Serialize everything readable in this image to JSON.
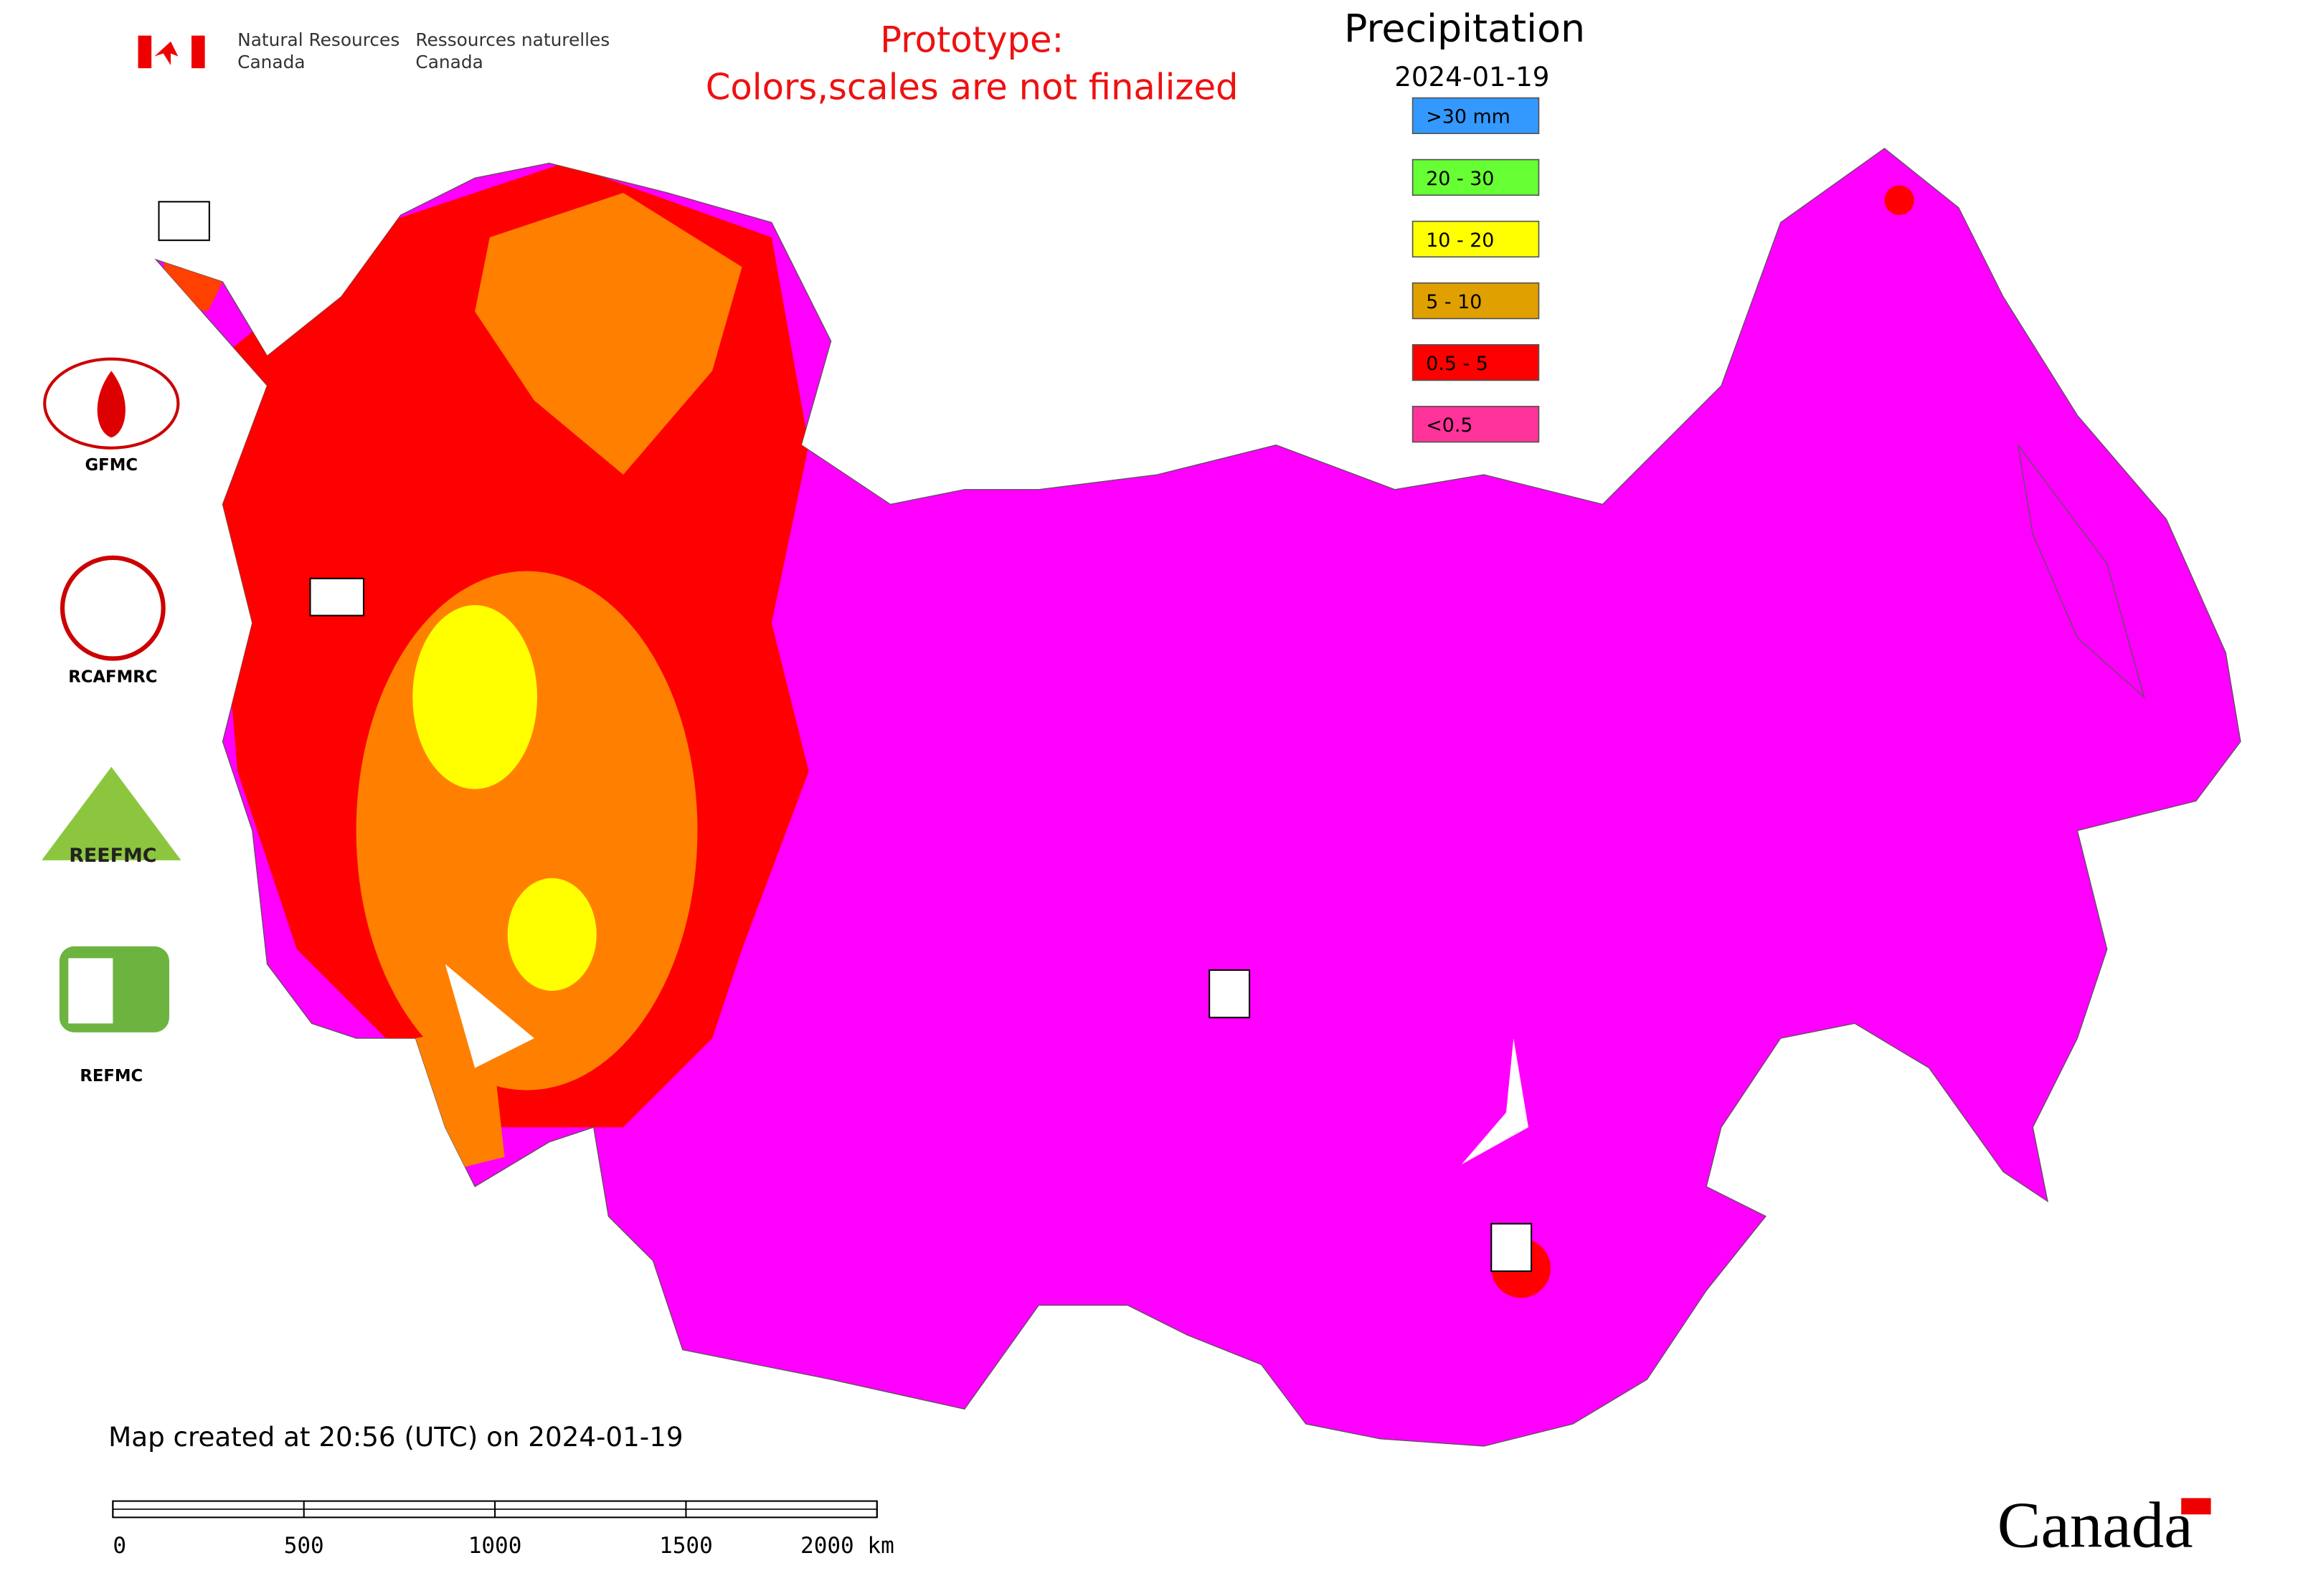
{
  "header": {
    "agency_en": [
      "Natural Resources",
      "Canada"
    ],
    "agency_fr": [
      "Ressources naturelles",
      "Canada"
    ],
    "notice": [
      "Prototype:",
      "Colors,scales are not finalized"
    ]
  },
  "legend": {
    "title": "Precipitation",
    "date": "2024-01-19",
    "items": [
      {
        "label": ">30 mm",
        "color": "#3399ff"
      },
      {
        "label": "20 - 30",
        "color": "#66ff33"
      },
      {
        "label": "10 - 20",
        "color": "#ffff00"
      },
      {
        "label": "5 - 10",
        "color": "#e0a000"
      },
      {
        "label": "0.5 - 5",
        "color": "#ff0000"
      },
      {
        "label": "<0.5",
        "color": "#ff3399"
      }
    ]
  },
  "logos": [
    "GFMC",
    "RCAFMRC",
    "REEFMC",
    "REFMC"
  ],
  "footer": {
    "created": "Map created at 20:56 (UTC) on 2024-01-19",
    "wordmark": "Canada"
  },
  "scale_bar": {
    "xlim": [
      0,
      2000
    ],
    "ticks": [
      0,
      500,
      1000,
      1500,
      {
        "value": 2000,
        "label": "2000 km"
      }
    ]
  }
}
